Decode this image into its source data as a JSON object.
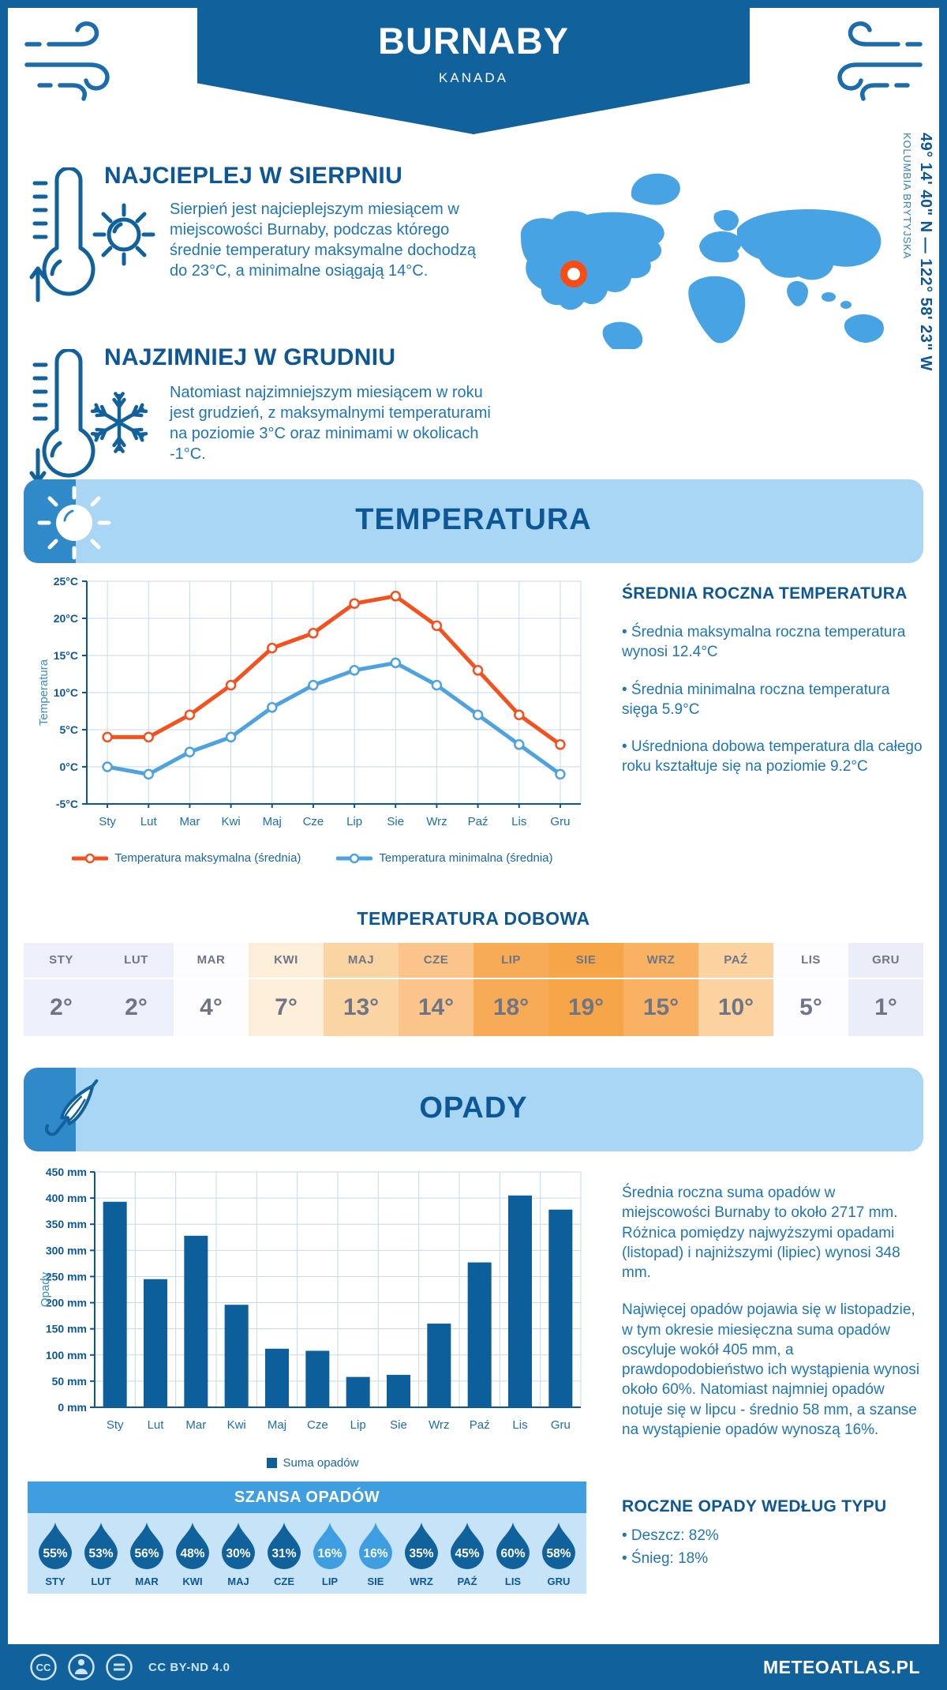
{
  "header": {
    "title": "BURNABY",
    "subtitle": "KANADA"
  },
  "highlights": [
    {
      "title": "NAJCIEPLEJ W SIERPNIU",
      "text": "Sierpień jest najcieplejszym miesiącem w miejscowości Burnaby, podczas którego średnie temperatury maksymalne dochodzą do 23°C, a minimalne osiągają 14°C."
    },
    {
      "title": "NAJZIMNIEJ W GRUDNIU",
      "text": "Natomiast najzimniejszym miesiącem w roku jest grudzień, z maksymalnymi temperaturami na poziomie 3°C oraz minimami w okolicach -1°C."
    }
  ],
  "map": {
    "coordinates": "49° 14' 40\" N — 122° 58' 23\" W",
    "region": "KOLUMBIA BRYTYJSKA"
  },
  "temperature": {
    "title": "TEMPERATURA",
    "annual": {
      "heading": "ŚREDNIA ROCZNA TEMPERATURA",
      "bullets": [
        "• Średnia maksymalna roczna temperatura wynosi 12.4°C",
        "• Średnia minimalna roczna temperatura sięga 5.9°C",
        "• Uśredniona dobowa temperatura dla całego roku kształtuje się na poziomie 9.2°C"
      ]
    },
    "daily": {
      "title": "TEMPERATURA DOBOWA",
      "months": [
        "STY",
        "LUT",
        "MAR",
        "KWI",
        "MAJ",
        "CZE",
        "LIP",
        "SIE",
        "WRZ",
        "PAŹ",
        "LIS",
        "GRU"
      ],
      "values": [
        "2°",
        "2°",
        "4°",
        "7°",
        "13°",
        "14°",
        "18°",
        "19°",
        "15°",
        "10°",
        "5°",
        "1°"
      ],
      "cell_colors": [
        "#edeffa",
        "#edeffa",
        "#fdfdff",
        "#fdeeda",
        "#fbd4a3",
        "#fac48a",
        "#f8ab57",
        "#f7a549",
        "#f9b264",
        "#fbd2a0",
        "#fdfdff",
        "#ebeef9"
      ]
    }
  },
  "precipitation": {
    "title": "OPADY",
    "paragraphs": [
      "Średnia roczna suma opadów w miejscowości Burnaby to około 2717 mm. Różnica pomiędzy najwyższymi opadami (listopad) i najniższymi (lipiec) wynosi 348 mm.",
      "Najwięcej opadów pojawia się w listopadzie, w tym okresie miesięczna suma opadów oscyluje wokół 405 mm, a prawdopodobieństwo ich wystąpienia wynosi około 60%. Natomiast najmniej opadów notuje się w lipcu - średnio 58 mm, a szanse na wystąpienie opadów wynoszą 16%."
    ],
    "chance": {
      "title": "SZANSA OPADÓW",
      "items": [
        {
          "month": "STY",
          "value": "55%",
          "color": "#10619c"
        },
        {
          "month": "LUT",
          "value": "53%",
          "color": "#10619c"
        },
        {
          "month": "MAR",
          "value": "56%",
          "color": "#10619c"
        },
        {
          "month": "KWI",
          "value": "48%",
          "color": "#10619c"
        },
        {
          "month": "MAJ",
          "value": "30%",
          "color": "#10619c"
        },
        {
          "month": "CZE",
          "value": "31%",
          "color": "#10619c"
        },
        {
          "month": "LIP",
          "value": "16%",
          "color": "#3f9de1"
        },
        {
          "month": "SIE",
          "value": "16%",
          "color": "#3f9de1"
        },
        {
          "month": "WRZ",
          "value": "35%",
          "color": "#10619c"
        },
        {
          "month": "PAŹ",
          "value": "45%",
          "color": "#10619c"
        },
        {
          "month": "LIS",
          "value": "60%",
          "color": "#10619c"
        },
        {
          "month": "GRU",
          "value": "58%",
          "color": "#10619c"
        }
      ]
    },
    "by_type": {
      "heading": "ROCZNE OPADY WEDŁUG TYPU",
      "bullets": [
        "• Deszcz: 82%",
        "• Śnieg: 18%"
      ]
    }
  },
  "footer": {
    "license": "CC BY-ND 4.0",
    "site": "METEOATLAS.PL"
  },
  "colors": {
    "primary_dark_blue": "#10619c",
    "light_banner_blue": "#a9d6f4",
    "map_blue": "#47a3e3",
    "marker_orange": "#f84c14",
    "max_line_orange": "#f4511e",
    "min_line_blue": "#4da3e0",
    "chance_header_blue": "#3e9edf",
    "chance_body_blue": "#c6e3f8"
  },
  "chart_data": [
    {
      "type": "line",
      "title": "",
      "categories": [
        "Sty",
        "Lut",
        "Mar",
        "Kwi",
        "Maj",
        "Cze",
        "Lip",
        "Sie",
        "Wrz",
        "Paź",
        "Lis",
        "Gru"
      ],
      "series": [
        {
          "name": "Temperatura maksymalna (średnia)",
          "color": "#f4511e",
          "values": [
            4,
            4,
            7,
            11,
            16,
            18,
            22,
            23,
            19,
            13,
            7,
            3
          ]
        },
        {
          "name": "Temperatura minimalna (średnia)",
          "color": "#4da3e0",
          "values": [
            0,
            -1,
            2,
            4,
            8,
            11,
            13,
            14,
            11,
            7,
            3,
            -1
          ]
        }
      ],
      "xlabel": "",
      "ylabel": "Temperatura",
      "ylim": [
        -5,
        25
      ],
      "ytick_step": 5,
      "ytick_suffix": "°C",
      "grid": true,
      "legend_position": "bottom"
    },
    {
      "type": "bar",
      "title": "",
      "categories": [
        "Sty",
        "Lut",
        "Mar",
        "Kwi",
        "Maj",
        "Cze",
        "Lip",
        "Sie",
        "Wrz",
        "Paź",
        "Lis",
        "Gru"
      ],
      "series": [
        {
          "name": "Suma opadów",
          "color": "#0d5f9c",
          "values": [
            393,
            245,
            328,
            196,
            112,
            108,
            58,
            62,
            160,
            277,
            405,
            378
          ]
        }
      ],
      "xlabel": "",
      "ylabel": "Opady",
      "ylim": [
        0,
        450
      ],
      "ytick_step": 50,
      "ytick_suffix": " mm",
      "grid": true,
      "legend_position": "bottom"
    }
  ]
}
